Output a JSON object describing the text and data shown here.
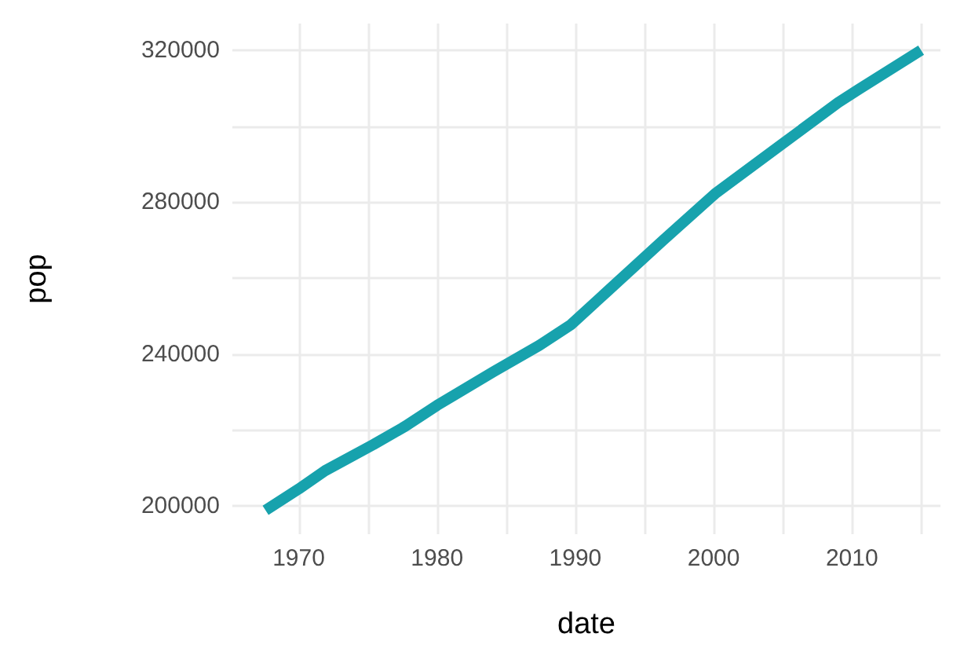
{
  "chart_data": {
    "type": "line",
    "xlabel": "date",
    "ylabel": "pop",
    "x": [
      1967.6,
      1970.0,
      1971.9,
      1975.4,
      1977.7,
      1980.0,
      1984.1,
      1987.4,
      1989.7,
      1992.4,
      1996.3,
      2000.1,
      2004.7,
      2009.0,
      2010.5,
      2015.0
    ],
    "series": [
      {
        "color": "#17a2ad",
        "values": [
          198900,
          204500,
          209300,
          216200,
          221000,
          226500,
          235400,
          242300,
          247800,
          256800,
          269800,
          282200,
          294600,
          306200,
          309700,
          320000
        ]
      }
    ],
    "xlim": [
      1965.2,
      2016.4
    ],
    "xticks": [
      1970,
      {
        "value": 1975,
        "label": null
      },
      1980,
      {
        "value": 1985,
        "label": null
      },
      1990,
      {
        "value": 1995,
        "label": null
      },
      2000,
      {
        "value": 2005,
        "label": null
      },
      2010,
      {
        "value": 2015,
        "label": null
      }
    ],
    "ylim": [
      192600,
      327000
    ],
    "yticks": [
      200000,
      {
        "value": 220000,
        "label": null
      },
      240000,
      {
        "value": 260000,
        "label": null
      },
      280000,
      {
        "value": 300000,
        "label": null
      },
      320000
    ],
    "grid": true,
    "marker": "none",
    "line_style": "solid"
  }
}
